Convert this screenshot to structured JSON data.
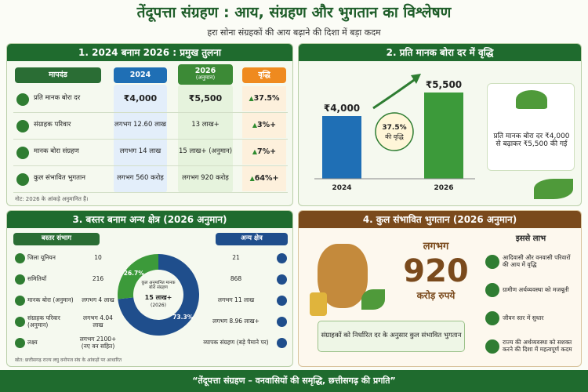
{
  "header": {
    "title": "तेंदूपत्ता संग्रहण : आय, संग्रहण और भुगतान का विश्लेषण",
    "subtitle": "हरा सोना संग्रहकों की आय बढ़ाने की दिशा में बड़ा कदम"
  },
  "comparison": {
    "title": "1. 2024 बनाम 2026 : प्रमुख तुलना",
    "headers": {
      "parameter": "मापदंड",
      "year1": "2024",
      "year2": "2026",
      "year2_note": "(अनुमान)",
      "growth": "वृद्धि"
    },
    "rows": [
      {
        "label": "प्रति मानक बोरा दर",
        "v2024": "₹4,000",
        "v2026": "₹5,500",
        "growth": "37.5%"
      },
      {
        "label": "संग्राहक परिवार",
        "v2024": "लगभग 12.60 लाख",
        "v2026": "13 लाख+",
        "growth": "3%+"
      },
      {
        "label": "मानक बोरा संग्रहण",
        "v2024": "लगभग 14 लाख",
        "v2026": "15 लाख+ (अनुमान)",
        "growth": "7%+"
      },
      {
        "label": "कुल संभावित भुगतान",
        "v2024": "लगभग 560 करोड़",
        "v2026": "लगभग 920 करोड़",
        "growth": "64%+"
      }
    ],
    "note": "नोट: 2026 के आंकड़े अनुमानित हैं।"
  },
  "rate_chart": {
    "title": "2. प्रति मानक बोरा दर में वृद्धि",
    "type": "bar",
    "categories": [
      "2024",
      "2026"
    ],
    "values": [
      4000,
      5500
    ],
    "value_labels": [
      "₹4,000",
      "₹5,500"
    ],
    "colors": [
      "#1f6fb5",
      "#3c9a3a"
    ],
    "growth_value": "37.5%",
    "growth_text": "की वृद्धि",
    "callout": "प्रति मानक बोरा दर ₹4,000 से बढ़ाकर ₹5,500 की गई"
  },
  "regions": {
    "title": "3. बस्तर बनाम अन्य क्षेत्र (2026 अनुमान)",
    "left_header": "बस्तर संभाग",
    "right_header": "अन्य क्षेत्र",
    "rows": [
      {
        "label": "जिला यूनियन",
        "bastar": "10",
        "other": "21"
      },
      {
        "label": "समितियाँ",
        "bastar": "216",
        "other": "868"
      },
      {
        "label": "मानक बोरा (अनुमान)",
        "bastar": "लगभग 4 लाख",
        "other": "लगभग 11 लाख"
      },
      {
        "label": "संग्राहक परिवार (अनुमान)",
        "bastar": "लगभग 4.04 लाख",
        "other": "लगभग 8.96 लाख+"
      },
      {
        "label": "लक्ष्य",
        "bastar": "लगभग 2100+ (नए वन सहित)",
        "other": "व्यापक संग्रहण (बड़े पैमाने पर)"
      }
    ],
    "donut": {
      "type": "pie",
      "values": [
        26.7,
        73.3
      ],
      "value_labels": [
        "26.7%",
        "73.3%"
      ],
      "colors": [
        "#3c9a3a",
        "#1f4e8c"
      ],
      "center_text": "कुल अनुमानित मानक बोरा संग्रहण",
      "center_value": "15 लाख+",
      "center_year": "(2026)"
    },
    "source": "स्रोत: छत्तीसगढ़ राज्य लघु वनोपज संघ के आंकड़ों पर आधारित"
  },
  "payment": {
    "title": "4. कुल संभावित भुगतान (2026 अनुमान)",
    "prefix": "लगभग",
    "amount": 920,
    "unit": "करोड़ रुपये",
    "caption": "संग्राहकों को निर्धारित दर के अनुसार कुल संभावित भुगतान",
    "benefits_title": "इससे लाभ",
    "benefits": [
      "आदिवासी और वनवासी परिवारों की आय में वृद्धि",
      "ग्रामीण अर्थव्यवस्था को मजबूती",
      "जीवन स्तर में सुधार",
      "राज्य की अर्थव्यवस्था को सशक्त करने की दिशा में महत्वपूर्ण कदम"
    ]
  },
  "footer": {
    "text": "“तेंदूपत्ता संग्रहण – वनवासियों की समृद्धि, छत्तीसगढ़ की प्रगति”"
  }
}
